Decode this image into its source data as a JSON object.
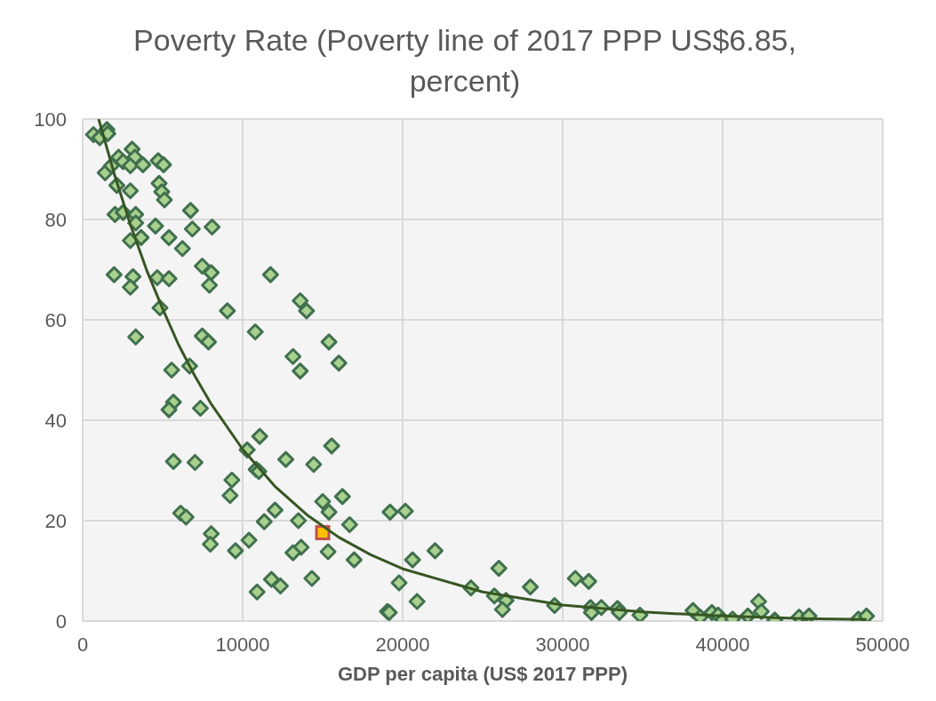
{
  "chart_data": {
    "type": "scatter",
    "title": "Poverty Rate (Poverty line of 2017 PPP US$6.85, percent)",
    "xlabel": "GDP per capita (US$ 2017 PPP)",
    "xlim": [
      0,
      50000
    ],
    "xticks": [
      0,
      10000,
      20000,
      30000,
      40000,
      50000
    ],
    "ylim": [
      0,
      100
    ],
    "yticks": [
      0,
      20,
      40,
      60,
      80,
      100
    ],
    "grid": true,
    "series": [
      {
        "marker": "diamond",
        "color": "#a9d18e",
        "x": [
          674,
          1067,
          1517,
          1573,
          1404,
          1798,
          2247,
          2528,
          3090,
          3258,
          2978,
          3764,
          4719,
          5056,
          2135,
          2978,
          2022,
          2528,
          3315,
          3315,
          3652,
          2978,
          4551,
          4775,
          4944,
          5112,
          6742,
          6854,
          8090,
          1966,
          3146,
          2978,
          4663,
          5393,
          6236,
          5393,
          7472,
          8034,
          7921,
          4832,
          3315,
          5562,
          6685,
          5674,
          5393,
          7360,
          7022,
          5674,
          9045,
          7472,
          7865,
          10787,
          11742,
          13596,
          13989,
          13146,
          13596,
          15393,
          16011,
          6124,
          6461,
          8034,
          7978,
          9326,
          9213,
          9551,
          10393,
          10281,
          11067,
          10843,
          11011,
          11348,
          12022,
          12697,
          14438,
          15562,
          16236,
          15000,
          15393,
          13483,
          16685,
          13652,
          13146,
          15337,
          16966,
          11798,
          12360,
          10899,
          14326,
          19213,
          20169,
          19045,
          20618,
          22022,
          26011,
          19775,
          20899,
          19157,
          24270,
          25730,
          26461,
          26236,
          27978,
          29494,
          30787,
          31629,
          31742,
          31798,
          32416,
          33427,
          33539,
          34831,
          38146,
          38596,
          39326,
          39719,
          40000,
          40618,
          41573,
          42247,
          42416,
          43258,
          44775,
          45393,
          48483,
          48989
        ],
        "values": [
          96.9,
          96.3,
          97.9,
          97.1,
          89.3,
          90.7,
          92.4,
          91.5,
          94,
          92.4,
          90.7,
          90.9,
          91.7,
          90.9,
          86.8,
          85.7,
          81,
          81.4,
          81,
          79.3,
          76.4,
          75.8,
          78.7,
          87.2,
          85.5,
          83.9,
          81.8,
          78.1,
          78.5,
          69,
          68.6,
          66.5,
          68.4,
          68.2,
          74.2,
          76.4,
          70.7,
          69.4,
          66.9,
          62.4,
          56.6,
          50,
          50.8,
          43.6,
          42.1,
          42.4,
          31.6,
          31.8,
          61.8,
          56.8,
          55.6,
          57.6,
          69,
          63.8,
          61.8,
          52.7,
          49.8,
          55.6,
          51.4,
          21.5,
          20.7,
          17.4,
          15.3,
          28.1,
          25,
          14,
          16.1,
          34.1,
          36.8,
          30.2,
          29.8,
          19.8,
          22.1,
          32.2,
          31.2,
          34.9,
          24.8,
          23.8,
          21.7,
          20,
          19.2,
          14.7,
          13.6,
          13.8,
          12.2,
          8.3,
          7,
          5.8,
          8.5,
          21.7,
          21.9,
          1.9,
          12.2,
          14,
          10.5,
          7.6,
          3.9,
          1.7,
          6.6,
          5,
          4.1,
          2.3,
          6.8,
          3.1,
          8.5,
          7.9,
          2.7,
          1.7,
          2.7,
          2.5,
          1.7,
          1.2,
          2.1,
          0.8,
          1.7,
          1.2,
          0.2,
          0.4,
          1,
          3.9,
          1.9,
          0.2,
          0.8,
          1,
          0.4,
          1
        ]
      },
      {
        "marker": "square",
        "color": "#ffc000",
        "x": [
          15000
        ],
        "values": [
          17.6
        ]
      },
      {
        "type": "line",
        "marker": "none",
        "color": "#375623",
        "x": [
          1000,
          2000,
          3000,
          4000,
          5000,
          6000,
          7000,
          8000,
          10000,
          12000,
          14000,
          16000,
          18000,
          20000,
          25000,
          30000,
          35000,
          40000,
          45000,
          49000
        ],
        "values": [
          100,
          88.8,
          78.8,
          69.9,
          62.2,
          55,
          48.9,
          43.4,
          34.2,
          26.9,
          21.2,
          16.7,
          13.2,
          10.4,
          5.8,
          3.2,
          1.8,
          1,
          0.5,
          0.3
        ]
      }
    ]
  }
}
